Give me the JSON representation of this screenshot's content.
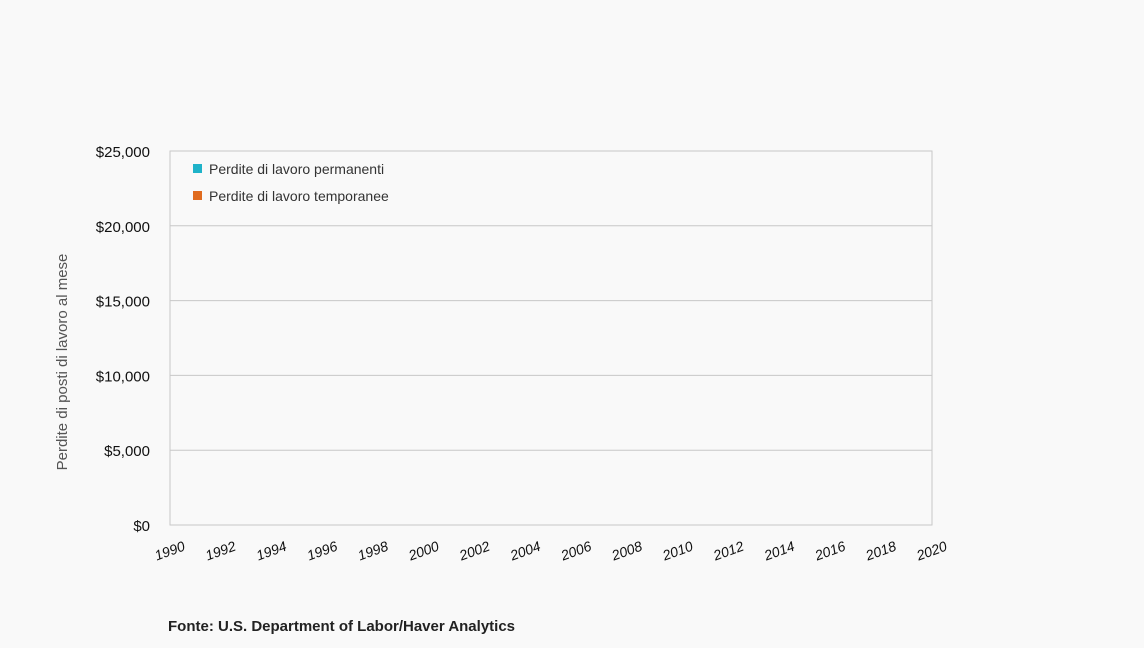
{
  "chart_data": {
    "type": "bar",
    "title": "",
    "ylabel": "Perdite di posti di lavoro al mese",
    "xlabel": "",
    "ylim": [
      0,
      25000
    ],
    "y_ticks": [
      "$0",
      "$5,000",
      "$10,000",
      "$15,000",
      "$20,000",
      "$25,000"
    ],
    "x_ticks": [
      "1990",
      "1992",
      "1994",
      "1996",
      "1998",
      "2000",
      "2002",
      "2004",
      "2006",
      "2008",
      "2010",
      "2012",
      "2014",
      "2016",
      "2018",
      "2020"
    ],
    "xlim": [
      1990,
      2020
    ],
    "grid": true,
    "legend_position": "top-left",
    "series": [
      {
        "name": "Perdite di lavoro permanenti",
        "color": "#1fb3c9",
        "values": []
      },
      {
        "name": "Perdite di lavoro temporanee",
        "color": "#e06b1f",
        "values": []
      }
    ]
  },
  "source": "Fonte: U.S. Department of Labor/Haver Analytics"
}
